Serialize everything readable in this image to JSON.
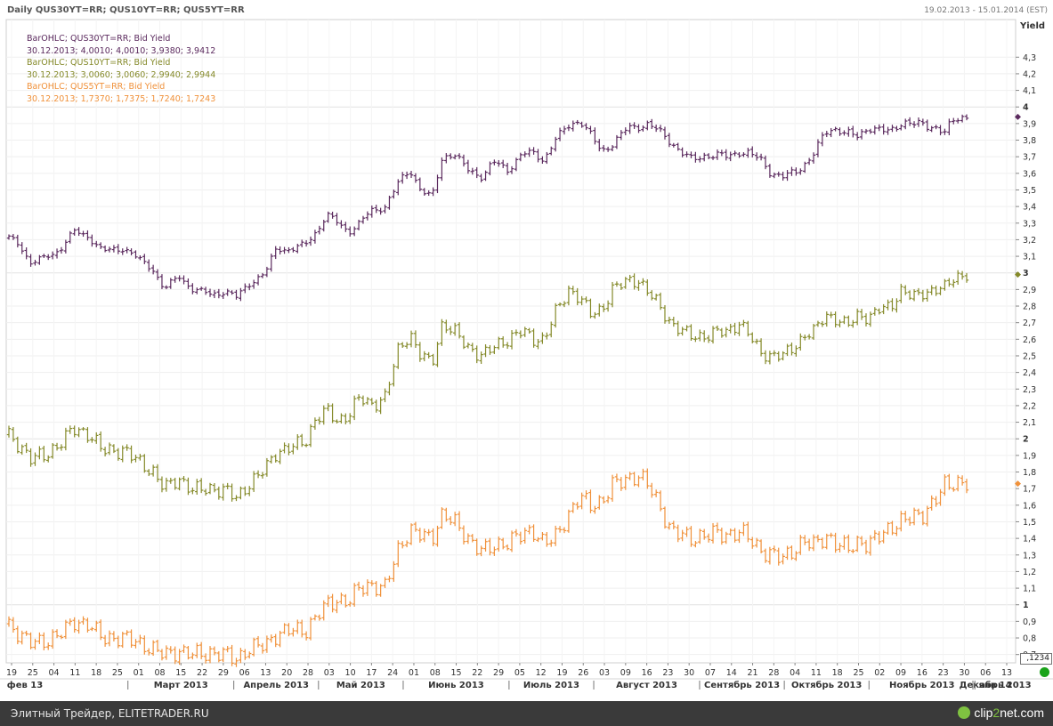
{
  "header": {
    "title": "Daily QUS30YT=RR; QUS10YT=RR; QUS5YT=RR",
    "date_range": "19.02.2013 - 15.01.2014 (EST)",
    "axis_title": "Yield"
  },
  "legend": {
    "entries": [
      {
        "label": "BarOHLC; QUS30YT=RR; Bid Yield",
        "values": "30.12.2013; 4,0010; 4,0010; 3,9380; 3,9412",
        "color": "#5b2a5e"
      },
      {
        "label": "BarOHLC; QUS10YT=RR; Bid Yield",
        "values": "30.12.2013; 3,0060; 3,0060; 2,9940; 2,9944",
        "color": "#858a2a"
      },
      {
        "label": "BarOHLC; QUS5YT=RR; Bid Yield",
        "values": "30.12.2013; 1,7370; 1,7375; 1,7240; 1,7243",
        "color": "#f0913a"
      }
    ]
  },
  "price_box": ",1234",
  "footer": {
    "source_text": "Элитный Трейдер, ELITETRADER.RU",
    "logo_main": "clip",
    "logo_accent": "2",
    "logo_rest": "net",
    "logo_suffix": ".com"
  },
  "chart_data": {
    "type": "ohlc-bar",
    "title": "Daily QUS30YT=RR; QUS10YT=RR; QUS5YT=RR",
    "date_range": "19.02.2013 - 15.01.2014 (EST)",
    "ylabel": "Yield",
    "ylim": [
      0.65,
      4.4
    ],
    "y_ticks": [
      "0,7",
      "0,8",
      "0,9",
      "1",
      "1,1",
      "1,2",
      "1,3",
      "1,4",
      "1,5",
      "1,6",
      "1,7",
      "1,8",
      "1,9",
      "2",
      "2,1",
      "2,2",
      "2,3",
      "2,4",
      "2,5",
      "2,6",
      "2,7",
      "2,8",
      "2,9",
      "3",
      "3,1",
      "3,2",
      "3,3",
      "3,4",
      "3,5",
      "3,6",
      "3,7",
      "3,8",
      "3,9",
      "4",
      "4,1",
      "4,2",
      "4,3"
    ],
    "y_ticks_bold": [
      "1",
      "2",
      "3",
      "4"
    ],
    "x_day_ticks": [
      "19",
      "25",
      "04",
      "11",
      "18",
      "25",
      "01",
      "08",
      "15",
      "22",
      "29",
      "06",
      "13",
      "20",
      "28",
      "03",
      "10",
      "17",
      "24",
      "01",
      "08",
      "15",
      "22",
      "29",
      "05",
      "12",
      "19",
      "26",
      "03",
      "09",
      "16",
      "23",
      "30",
      "07",
      "14",
      "21",
      "28",
      "04",
      "11",
      "18",
      "25",
      "02",
      "09",
      "16",
      "23",
      "30",
      "06",
      "13"
    ],
    "x_month_labels": [
      "фев 13",
      "Март 2013",
      "Апрель 2013",
      "Май 2013",
      "Июнь 2013",
      "Июль 2013",
      "Август 2013",
      "Сентябрь 2013",
      "Октябрь 2013",
      "Ноябрь 2013",
      "Декабрь 2013",
      "янв 14"
    ],
    "grid": true,
    "series": [
      {
        "name": "QUS30YT=RR",
        "color": "#5b2a5e",
        "anchors": [
          [
            0,
            3.21
          ],
          [
            3,
            3.17
          ],
          [
            6,
            3.06
          ],
          [
            10,
            3.09
          ],
          [
            14,
            3.14
          ],
          [
            18,
            3.25
          ],
          [
            22,
            3.22
          ],
          [
            26,
            3.13
          ],
          [
            32,
            3.15
          ],
          [
            36,
            3.08
          ],
          [
            40,
            3.02
          ],
          [
            43,
            2.9
          ],
          [
            47,
            2.98
          ],
          [
            51,
            2.9
          ],
          [
            56,
            2.87
          ],
          [
            60,
            2.89
          ],
          [
            63,
            2.85
          ],
          [
            66,
            2.93
          ],
          [
            71,
            3.0
          ],
          [
            74,
            3.15
          ],
          [
            78,
            3.14
          ],
          [
            82,
            3.17
          ],
          [
            85,
            3.25
          ],
          [
            88,
            3.35
          ],
          [
            91,
            3.3
          ],
          [
            94,
            3.25
          ],
          [
            97,
            3.3
          ],
          [
            100,
            3.37
          ],
          [
            104,
            3.4
          ],
          [
            108,
            3.55
          ],
          [
            111,
            3.62
          ],
          [
            114,
            3.5
          ],
          [
            117,
            3.45
          ],
          [
            120,
            3.7
          ],
          [
            123,
            3.72
          ],
          [
            127,
            3.62
          ],
          [
            131,
            3.58
          ],
          [
            134,
            3.67
          ],
          [
            138,
            3.62
          ],
          [
            142,
            3.72
          ],
          [
            145,
            3.72
          ],
          [
            148,
            3.68
          ],
          [
            151,
            3.8
          ],
          [
            155,
            3.89
          ],
          [
            158,
            3.92
          ],
          [
            161,
            3.83
          ],
          [
            164,
            3.73
          ],
          [
            167,
            3.78
          ],
          [
            171,
            3.87
          ],
          [
            174,
            3.88
          ],
          [
            177,
            3.9
          ],
          [
            180,
            3.85
          ],
          [
            183,
            3.79
          ],
          [
            186,
            3.73
          ],
          [
            189,
            3.68
          ],
          [
            193,
            3.71
          ],
          [
            196,
            3.71
          ],
          [
            199,
            3.7
          ],
          [
            202,
            3.73
          ],
          [
            205,
            3.72
          ],
          [
            208,
            3.68
          ],
          [
            211,
            3.6
          ],
          [
            214,
            3.58
          ],
          [
            217,
            3.6
          ],
          [
            220,
            3.65
          ],
          [
            223,
            3.73
          ],
          [
            226,
            3.85
          ],
          [
            229,
            3.87
          ],
          [
            232,
            3.84
          ],
          [
            235,
            3.82
          ],
          [
            238,
            3.88
          ],
          [
            241,
            3.86
          ],
          [
            244,
            3.85
          ],
          [
            247,
            3.91
          ],
          [
            250,
            3.9
          ],
          [
            253,
            3.89
          ],
          [
            256,
            3.88
          ],
          [
            259,
            3.85
          ],
          [
            262,
            3.93
          ],
          [
            265,
            3.94
          ]
        ]
      },
      {
        "name": "QUS10YT=RR",
        "color": "#858a2a",
        "anchors": [
          [
            0,
            2.02
          ],
          [
            3,
            1.96
          ],
          [
            6,
            1.88
          ],
          [
            10,
            1.9
          ],
          [
            14,
            1.97
          ],
          [
            18,
            2.06
          ],
          [
            22,
            2.03
          ],
          [
            26,
            1.93
          ],
          [
            32,
            1.93
          ],
          [
            36,
            1.86
          ],
          [
            40,
            1.8
          ],
          [
            43,
            1.7
          ],
          [
            47,
            1.76
          ],
          [
            51,
            1.69
          ],
          [
            56,
            1.7
          ],
          [
            60,
            1.69
          ],
          [
            63,
            1.64
          ],
          [
            66,
            1.72
          ],
          [
            71,
            1.82
          ],
          [
            74,
            1.92
          ],
          [
            78,
            1.95
          ],
          [
            82,
            1.98
          ],
          [
            85,
            2.13
          ],
          [
            88,
            2.17
          ],
          [
            91,
            2.1
          ],
          [
            94,
            2.15
          ],
          [
            97,
            2.25
          ],
          [
            100,
            2.2
          ],
          [
            104,
            2.25
          ],
          [
            108,
            2.55
          ],
          [
            111,
            2.63
          ],
          [
            114,
            2.5
          ],
          [
            117,
            2.45
          ],
          [
            120,
            2.7
          ],
          [
            123,
            2.65
          ],
          [
            127,
            2.55
          ],
          [
            131,
            2.5
          ],
          [
            134,
            2.55
          ],
          [
            138,
            2.6
          ],
          [
            142,
            2.65
          ],
          [
            145,
            2.6
          ],
          [
            148,
            2.6
          ],
          [
            151,
            2.75
          ],
          [
            155,
            2.9
          ],
          [
            158,
            2.85
          ],
          [
            161,
            2.75
          ],
          [
            164,
            2.78
          ],
          [
            167,
            2.9
          ],
          [
            171,
            2.95
          ],
          [
            174,
            2.96
          ],
          [
            177,
            2.88
          ],
          [
            180,
            2.8
          ],
          [
            183,
            2.7
          ],
          [
            186,
            2.65
          ],
          [
            189,
            2.62
          ],
          [
            193,
            2.62
          ],
          [
            196,
            2.64
          ],
          [
            199,
            2.65
          ],
          [
            202,
            2.7
          ],
          [
            205,
            2.62
          ],
          [
            208,
            2.52
          ],
          [
            211,
            2.5
          ],
          [
            214,
            2.5
          ],
          [
            217,
            2.55
          ],
          [
            220,
            2.62
          ],
          [
            223,
            2.65
          ],
          [
            226,
            2.75
          ],
          [
            229,
            2.72
          ],
          [
            232,
            2.68
          ],
          [
            235,
            2.75
          ],
          [
            238,
            2.73
          ],
          [
            241,
            2.78
          ],
          [
            244,
            2.8
          ],
          [
            247,
            2.9
          ],
          [
            250,
            2.85
          ],
          [
            253,
            2.88
          ],
          [
            256,
            2.9
          ],
          [
            259,
            2.91
          ],
          [
            262,
            2.98
          ],
          [
            265,
            2.99
          ]
        ]
      },
      {
        "name": "QUS5YT=RR",
        "color": "#f0913a",
        "anchors": [
          [
            0,
            0.88
          ],
          [
            3,
            0.82
          ],
          [
            6,
            0.77
          ],
          [
            10,
            0.78
          ],
          [
            14,
            0.82
          ],
          [
            18,
            0.9
          ],
          [
            22,
            0.88
          ],
          [
            26,
            0.8
          ],
          [
            32,
            0.8
          ],
          [
            36,
            0.77
          ],
          [
            40,
            0.73
          ],
          [
            43,
            0.7
          ],
          [
            47,
            0.72
          ],
          [
            51,
            0.7
          ],
          [
            56,
            0.71
          ],
          [
            60,
            0.7
          ],
          [
            63,
            0.67
          ],
          [
            66,
            0.73
          ],
          [
            71,
            0.76
          ],
          [
            74,
            0.82
          ],
          [
            78,
            0.85
          ],
          [
            82,
            0.84
          ],
          [
            85,
            0.93
          ],
          [
            88,
            1.0
          ],
          [
            91,
            1.03
          ],
          [
            94,
            1.02
          ],
          [
            97,
            1.1
          ],
          [
            100,
            1.12
          ],
          [
            104,
            1.1
          ],
          [
            108,
            1.35
          ],
          [
            111,
            1.45
          ],
          [
            114,
            1.42
          ],
          [
            117,
            1.4
          ],
          [
            120,
            1.55
          ],
          [
            123,
            1.5
          ],
          [
            127,
            1.4
          ],
          [
            131,
            1.32
          ],
          [
            134,
            1.35
          ],
          [
            138,
            1.38
          ],
          [
            142,
            1.42
          ],
          [
            145,
            1.45
          ],
          [
            148,
            1.37
          ],
          [
            151,
            1.4
          ],
          [
            155,
            1.55
          ],
          [
            158,
            1.65
          ],
          [
            161,
            1.6
          ],
          [
            164,
            1.62
          ],
          [
            167,
            1.72
          ],
          [
            171,
            1.76
          ],
          [
            174,
            1.78
          ],
          [
            177,
            1.72
          ],
          [
            180,
            1.6
          ],
          [
            183,
            1.45
          ],
          [
            186,
            1.42
          ],
          [
            189,
            1.4
          ],
          [
            193,
            1.42
          ],
          [
            196,
            1.43
          ],
          [
            199,
            1.42
          ],
          [
            202,
            1.44
          ],
          [
            205,
            1.4
          ],
          [
            208,
            1.33
          ],
          [
            211,
            1.3
          ],
          [
            214,
            1.28
          ],
          [
            217,
            1.33
          ],
          [
            220,
            1.38
          ],
          [
            223,
            1.36
          ],
          [
            226,
            1.42
          ],
          [
            229,
            1.36
          ],
          [
            232,
            1.34
          ],
          [
            235,
            1.38
          ],
          [
            238,
            1.36
          ],
          [
            241,
            1.42
          ],
          [
            244,
            1.47
          ],
          [
            247,
            1.5
          ],
          [
            250,
            1.53
          ],
          [
            253,
            1.55
          ],
          [
            256,
            1.62
          ],
          [
            259,
            1.72
          ],
          [
            262,
            1.74
          ],
          [
            265,
            1.73
          ]
        ]
      }
    ]
  }
}
